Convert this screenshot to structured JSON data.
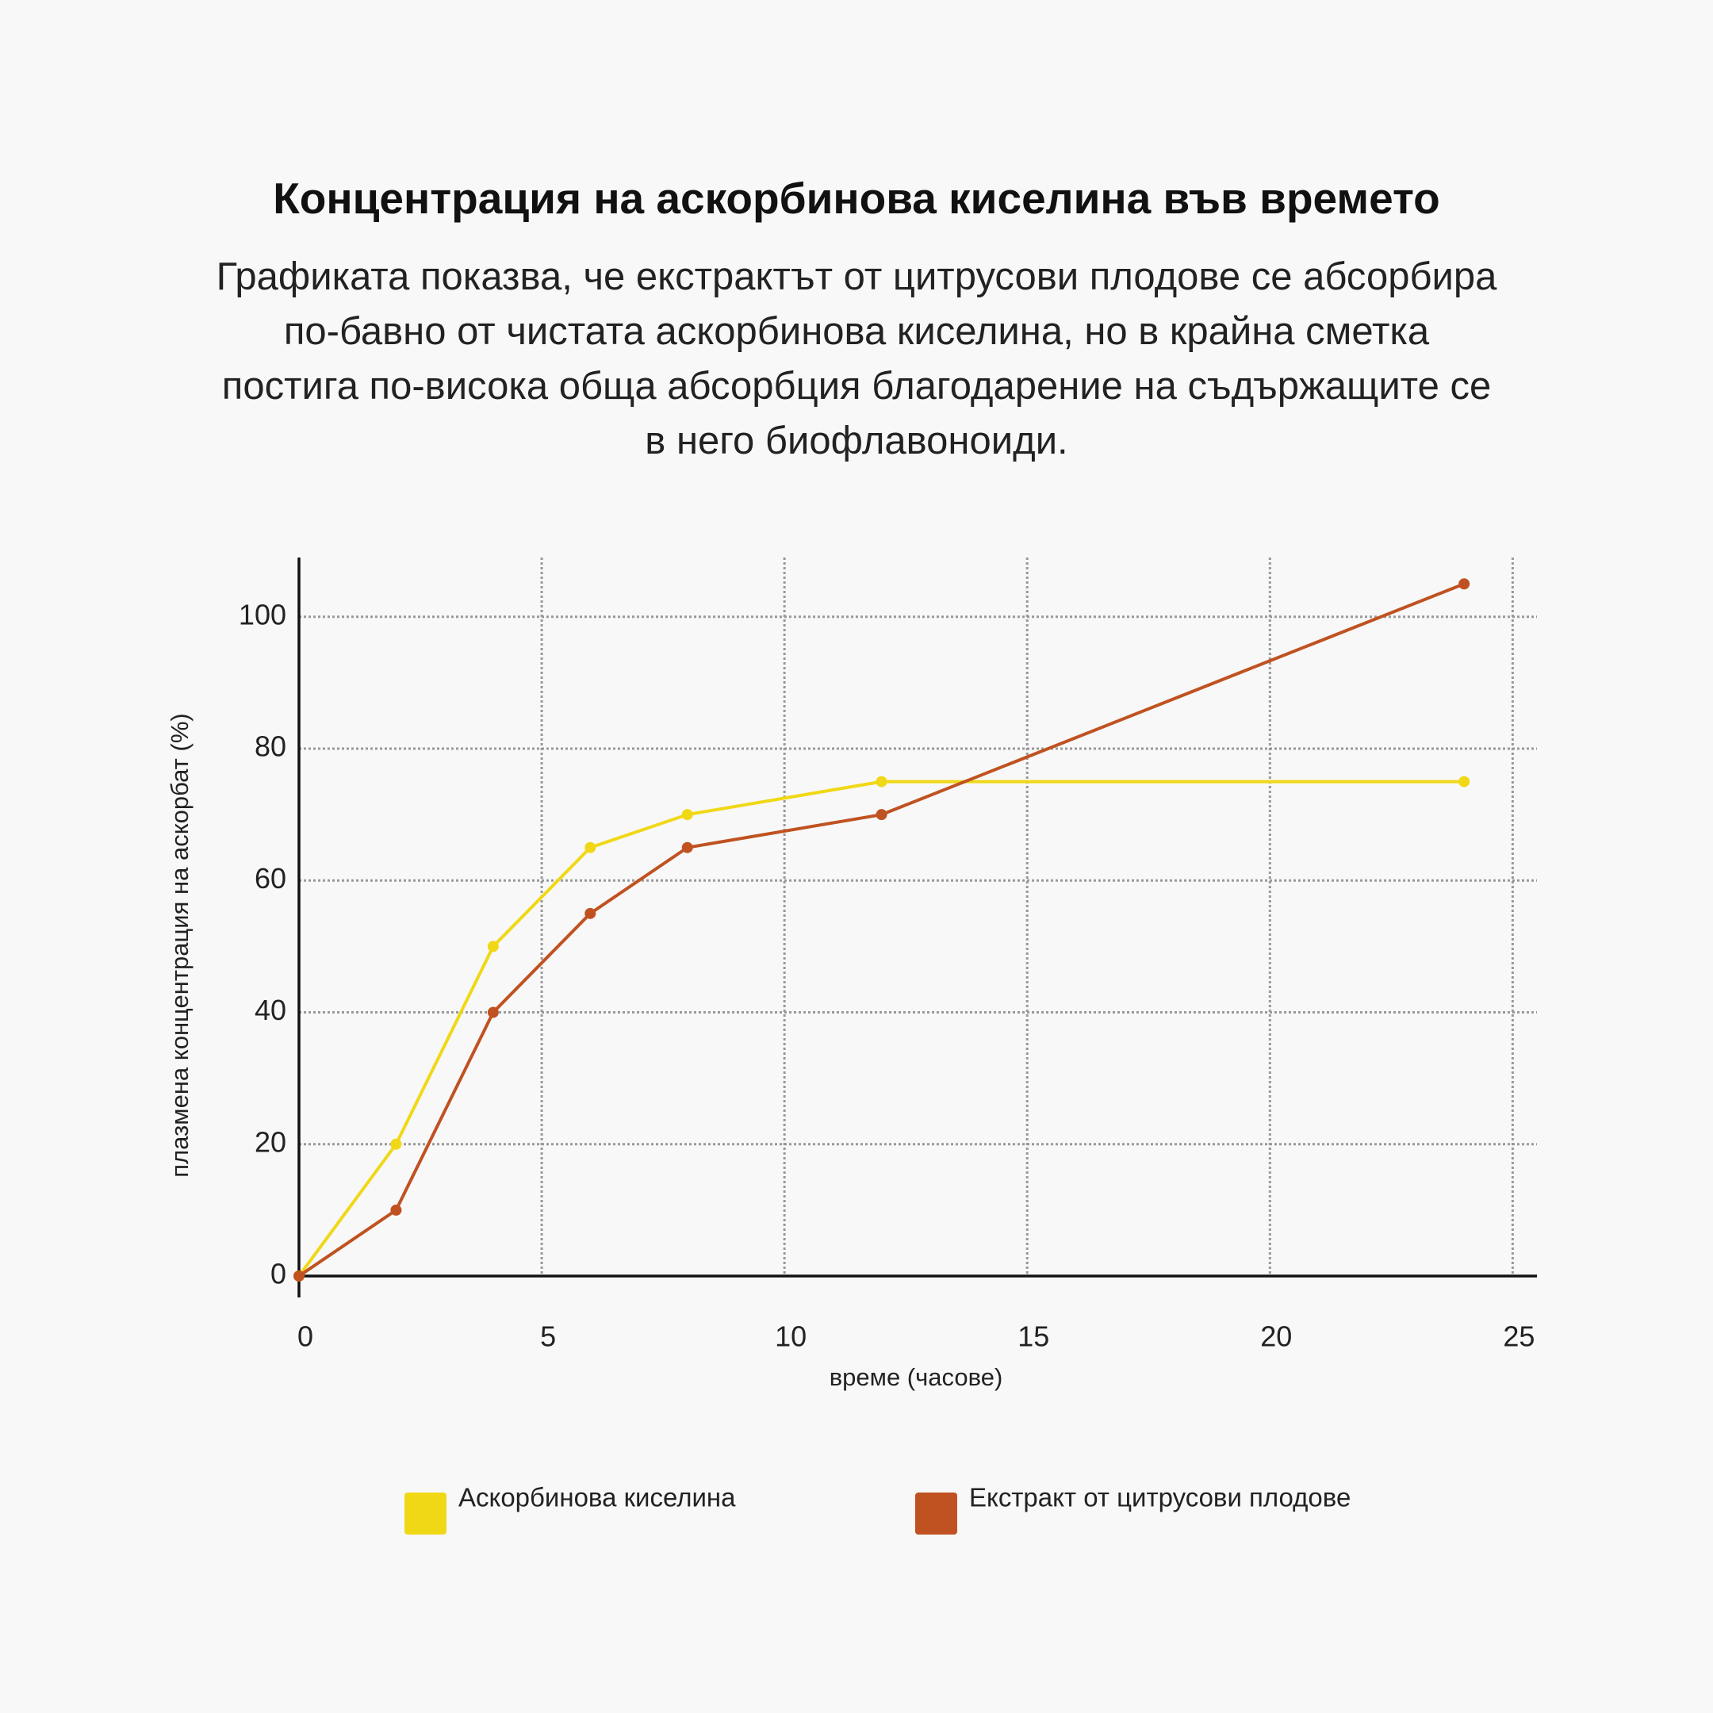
{
  "chart_data": {
    "type": "line",
    "title": "Концентрация на аскорбинова киселина във времето",
    "subtitle": "Графиката показва, че екстрактът от цитрусови плодове се абсорбира по-бавно от чистата аскорбинова киселина, но в крайна сметка постига по-висока обща абсорбция благодарение на съдържащите се в него биофлавоноиди.",
    "x_label": "време (часове)",
    "y_label": "плазмена концентрация на аскорбат (%)",
    "xlim": [
      0,
      25.5
    ],
    "xticks": [
      0,
      5,
      10,
      15,
      20,
      25
    ],
    "ylim": [
      0,
      109
    ],
    "yticks": [
      0,
      20,
      40,
      60,
      80,
      100
    ],
    "grid": true,
    "legend": "bottom",
    "series": [
      {
        "name": "Аскорбинова киселина",
        "color": "#f0d817",
        "x": [
          0,
          2,
          4,
          6,
          8,
          12,
          24
        ],
        "values": [
          0,
          20,
          50,
          65,
          70,
          75,
          75
        ]
      },
      {
        "name": "Екстракт от цитрусови плодове",
        "color": "#c05221",
        "x": [
          0,
          2,
          4,
          6,
          8,
          12,
          24
        ],
        "values": [
          0,
          10,
          40,
          55,
          65,
          70,
          105
        ]
      }
    ]
  }
}
